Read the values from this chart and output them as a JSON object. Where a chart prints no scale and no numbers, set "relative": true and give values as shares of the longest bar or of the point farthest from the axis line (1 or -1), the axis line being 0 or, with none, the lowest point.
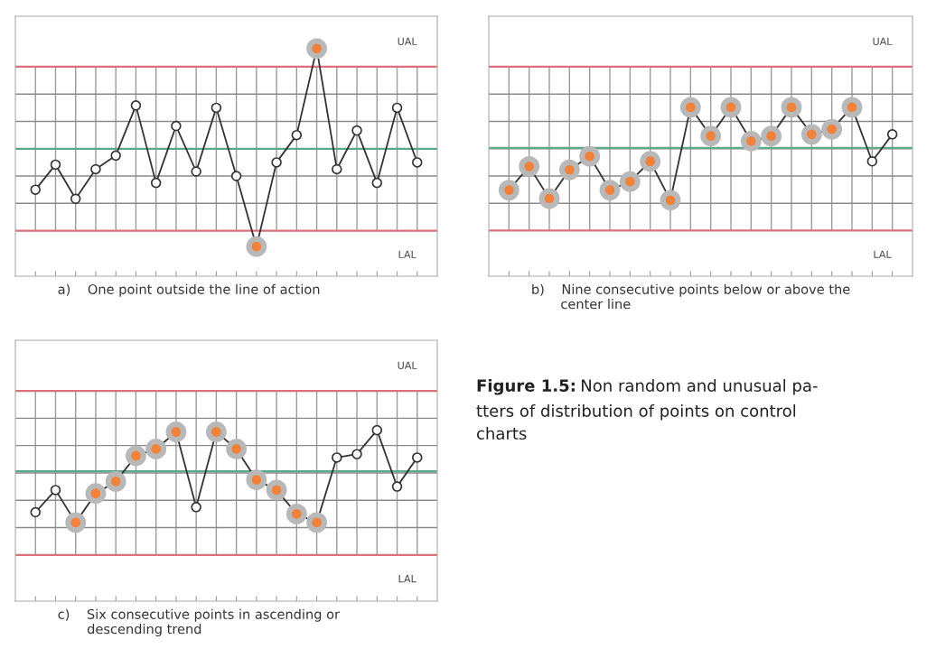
{
  "chart_data": [
    {
      "type": "line",
      "relative": true,
      "xlabel": "a)    One point outside the line of action",
      "categories": [
        null,
        null,
        null,
        null,
        null,
        null,
        null,
        null,
        null,
        null,
        null,
        null,
        null,
        null,
        null,
        null,
        null,
        null,
        null,
        null
      ],
      "marker": "circle",
      "grid": true,
      "series": [
        {
          "color": "#333333",
          "colors": [
            "#ffffff",
            "#ffffff",
            "#ffffff",
            "#ffffff",
            "#ffffff",
            "#ffffff",
            "#ffffff",
            "#ffffff",
            "#ffffff",
            "#ffffff",
            "#ffffff",
            "#f0823c",
            "#ffffff",
            "#ffffff",
            "#f0823c",
            "#ffffff",
            "#ffffff",
            "#ffffff",
            "#ffffff",
            "#ffffff"
          ],
          "values": [
            0.38,
            0.49,
            0.34,
            0.47,
            0.53,
            0.75,
            0.41,
            0.66,
            0.46,
            0.74,
            0.44,
            0.13,
            0.5,
            0.62,
            1.0,
            0.47,
            0.64,
            0.41,
            0.74,
            0.5
          ]
        }
      ],
      "ref_lines": [
        {
          "axis": "y",
          "value": 0.92,
          "label": "UAL",
          "color": "#d9707a"
        },
        {
          "axis": "y",
          "value": 0.56,
          "color": "#5aaa88"
        },
        {
          "axis": "y",
          "value": 0.2,
          "label": "LAL",
          "color": "#d9707a"
        }
      ]
    },
    {
      "type": "line",
      "relative": true,
      "xlabel": "b)    Nine consecutive points below or above the\n       center line",
      "categories": [
        null,
        null,
        null,
        null,
        null,
        null,
        null,
        null,
        null,
        null,
        null,
        null,
        null,
        null,
        null,
        null,
        null,
        null,
        null,
        null
      ],
      "marker": "circle",
      "grid": true,
      "series": [
        {
          "color": "#333333",
          "colors": [
            "#f0823c",
            "#f0823c",
            "#f0823c",
            "#f0823c",
            "#f0823c",
            "#f0823c",
            "#f0823c",
            "#f0823c",
            "#f0823c",
            "#f0823c",
            "#f0823c",
            "#f0823c",
            "#f0823c",
            "#f0823c",
            "#f0823c",
            "#f0823c",
            "#f0823c",
            "#f0823c",
            "#ffffff",
            "#ffffff"
          ],
          "values": [
            0.51,
            0.65,
            0.46,
            0.63,
            0.71,
            0.51,
            0.56,
            0.68,
            0.45,
            1,
            0.83,
            1,
            0.8,
            0.83,
            1,
            0.84,
            0.87,
            1,
            0.68,
            0.84
          ]
        }
      ],
      "ref_lines": [
        {
          "axis": "y",
          "value": 1.24,
          "label": "UAL",
          "color": "#d9707a"
        },
        {
          "axis": "y",
          "value": 0.76,
          "color": "#5aaa88"
        },
        {
          "axis": "y",
          "value": 0.27,
          "label": "LAL",
          "color": "#d9707a"
        }
      ]
    },
    {
      "type": "line",
      "relative": true,
      "xlabel": "c)    Six consecutive points in ascending or\n       descending trend",
      "categories": [
        null,
        null,
        null,
        null,
        null,
        null,
        null,
        null,
        null,
        null,
        null,
        null,
        null,
        null,
        null,
        null,
        null,
        null,
        null,
        null
      ],
      "marker": "circle",
      "grid": true,
      "series": [
        {
          "color": "#333333",
          "colors": [
            "#ffffff",
            "#ffffff",
            "#f0823c",
            "#f0823c",
            "#f0823c",
            "#f0823c",
            "#f0823c",
            "#f0823c",
            "#ffffff",
            "#f0823c",
            "#f0823c",
            "#f0823c",
            "#f0823c",
            "#f0823c",
            "#f0823c",
            "#ffffff",
            "#ffffff",
            "#ffffff",
            "#ffffff",
            "#ffffff"
          ],
          "values": [
            0.52,
            0.65,
            0.46,
            0.63,
            0.7,
            0.85,
            0.89,
            0.99,
            0.55,
            0.99,
            0.89,
            0.71,
            0.65,
            0.51,
            0.46,
            0.84,
            0.86,
            1,
            0.67,
            0.84
          ]
        }
      ],
      "ref_lines": [
        {
          "axis": "y",
          "value": 1.23,
          "label": "UAL",
          "color": "#d9707a"
        },
        {
          "axis": "y",
          "value": 0.76,
          "color": "#5aaa88"
        },
        {
          "axis": "y",
          "value": 0.27,
          "label": "LAL",
          "color": "#d9707a"
        }
      ]
    },
    {
      "type": "other",
      "title": "Figure 1.5:",
      "annotations": [
        "Non random and unusual pa-\ntters of distribution of points on control\ncharts"
      ]
    }
  ]
}
